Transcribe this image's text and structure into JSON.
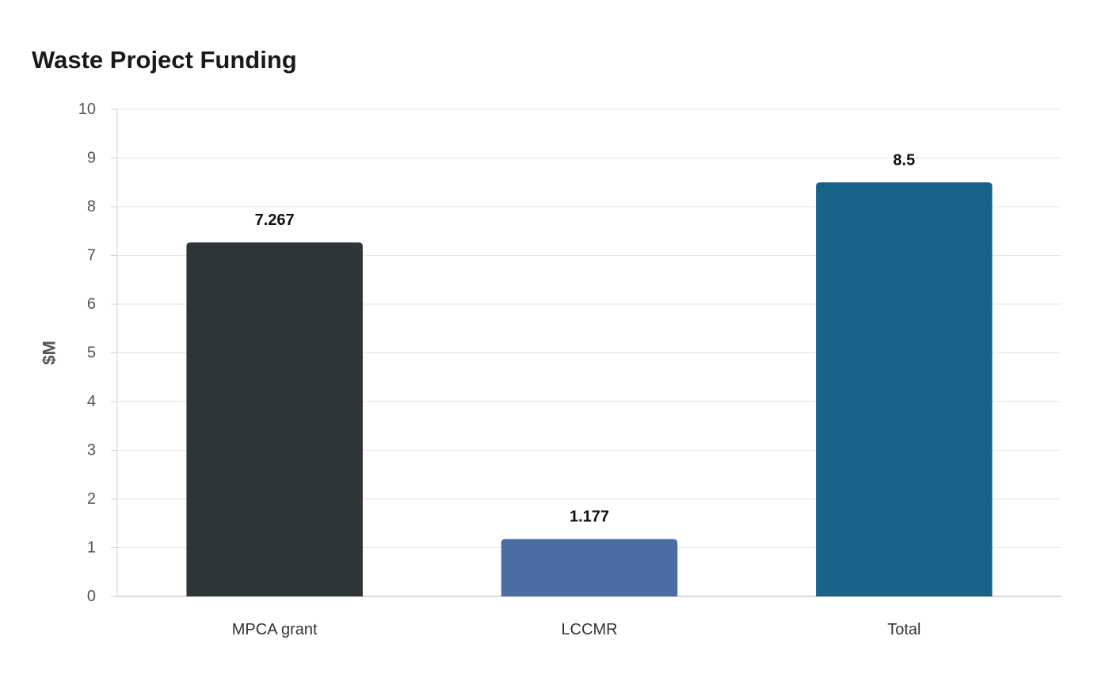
{
  "chart_data": {
    "type": "bar",
    "title": "Waste Project Funding",
    "xlabel": "",
    "ylabel": "$M",
    "categories": [
      "MPCA grant",
      "LCCMR",
      "Total"
    ],
    "values": [
      7.267,
      1.177,
      8.5
    ],
    "data_labels": [
      "7.267",
      "1.177",
      "8.5"
    ],
    "bar_colors": [
      "#2e3538",
      "#4a6ea3",
      "#186189"
    ],
    "ylim": [
      0,
      10
    ],
    "yticks": [
      0,
      1,
      2,
      3,
      4,
      5,
      6,
      7,
      8,
      9,
      10
    ],
    "grid": true,
    "legend": "none"
  }
}
